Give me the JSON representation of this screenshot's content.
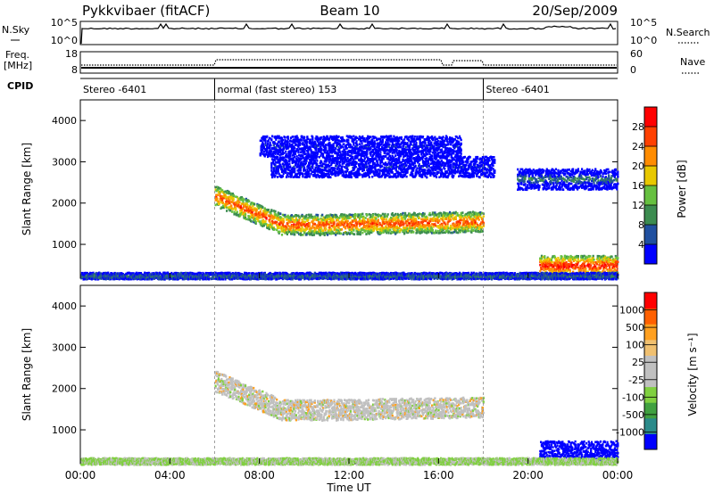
{
  "header": {
    "station": "Pykkvibaer (fitACF)",
    "beam": "Beam 10",
    "date": "20/Sep/2009"
  },
  "nsky_panel": {
    "label": "N.Sky",
    "right_label": "N.Search",
    "left_ticks": [
      "10^5",
      "10^0"
    ],
    "right_ticks": [
      "10^5",
      "10^0"
    ]
  },
  "freq_panel": {
    "label_line1": "Freq.",
    "label_line2": "[MHz]",
    "right_label": "Nave",
    "left_ticks": [
      "18",
      "8"
    ],
    "right_ticks": [
      "60",
      "0"
    ]
  },
  "cpid": {
    "label": "CPID",
    "segments": [
      {
        "start_hour": 0,
        "end_hour": 6,
        "text": "Stereo -6401"
      },
      {
        "start_hour": 6,
        "end_hour": 18,
        "text": "normal (fast stereo) 153"
      },
      {
        "start_hour": 18,
        "end_hour": 24,
        "text": "Stereo -6401"
      }
    ]
  },
  "colors": {
    "power_scale": [
      "#0000ff",
      "#2050a0",
      "#3c8c50",
      "#66c040",
      "#e8c800",
      "#ff8c00",
      "#ff4000",
      "#ff0000"
    ],
    "velocity_scale": [
      "#ff0000",
      "#ff6000",
      "#ffa020",
      "#f0c070",
      "#c0c0c0",
      "#c0c0c0",
      "#80d040",
      "#40a040",
      "#2a8a8a",
      "#0000ff"
    ]
  },
  "chart_data": [
    {
      "type": "heatmap",
      "title": "",
      "xlabel": "Time UT",
      "ylabel": "Slant Range [km]",
      "x_tick_labels": [
        "00:00",
        "04:00",
        "08:00",
        "12:00",
        "16:00",
        "20:00",
        "00:00"
      ],
      "x_range_hours": [
        0,
        24
      ],
      "y_tick_labels": [
        "1000",
        "2000",
        "3000",
        "4000"
      ],
      "ylim": [
        180,
        4500
      ],
      "colorbar": {
        "label": "Power [dB]",
        "ticks": [
          "4",
          "8",
          "12",
          "16",
          "20",
          "24",
          "28"
        ],
        "range": [
          0,
          30
        ]
      },
      "features": [
        {
          "name": "main band",
          "start_hour": 6.0,
          "end_hour": 18.0,
          "range_start_km": 2200,
          "range_end_km": 1500,
          "power_db": 28
        },
        {
          "name": "upper band",
          "start_hour": 8.5,
          "end_hour": 18.5,
          "range_km": 2900,
          "power_db": 6
        },
        {
          "name": "upper band 2",
          "start_hour": 8.0,
          "end_hour": 17.0,
          "range_km": 3400,
          "power_db": 6
        },
        {
          "name": "evening band",
          "start_hour": 20.5,
          "end_hour": 24.0,
          "range_km": 500,
          "power_db": 30
        },
        {
          "name": "evening upper",
          "start_hour": 19.5,
          "end_hour": 24.0,
          "range_km": 2600,
          "power_db": 12
        },
        {
          "name": "ground scatter",
          "start_hour": 0.0,
          "end_hour": 24.0,
          "range_km": 250,
          "power_db": 10
        }
      ]
    },
    {
      "type": "heatmap",
      "title": "",
      "xlabel": "Time UT",
      "ylabel": "Slant Range [km]",
      "x_tick_labels": [
        "00:00",
        "04:00",
        "08:00",
        "12:00",
        "16:00",
        "20:00",
        "00:00"
      ],
      "x_range_hours": [
        0,
        24
      ],
      "y_tick_labels": [
        "1000",
        "2000",
        "3000",
        "4000"
      ],
      "ylim": [
        180,
        4500
      ],
      "colorbar": {
        "label": "Velocity [m s⁻¹]",
        "ticks": [
          "1000",
          "500",
          "100",
          "25",
          "-25",
          "-100",
          "-500",
          "-1000"
        ],
        "range": [
          -1000,
          1000
        ]
      },
      "features": [
        {
          "name": "main band",
          "start_hour": 6.0,
          "end_hour": 18.0,
          "range_start_km": 2200,
          "range_end_km": 1500,
          "velocity_ms": 0
        },
        {
          "name": "evening band",
          "start_hour": 20.5,
          "end_hour": 24.0,
          "range_km": 500,
          "velocity_ms": 600
        },
        {
          "name": "ground scatter",
          "start_hour": 0.0,
          "end_hour": 24.0,
          "range_km": 250,
          "velocity_ms": 30
        }
      ]
    }
  ]
}
